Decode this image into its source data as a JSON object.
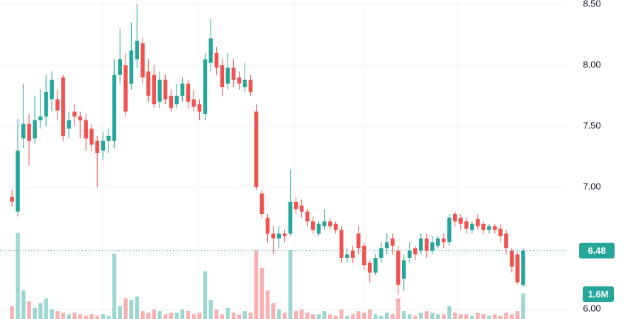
{
  "chart_data": {
    "type": "candlestick",
    "colors": {
      "up": "#26a69a",
      "down": "#ef5350"
    },
    "ylim": [
      5.92,
      8.535
    ],
    "yticks": [
      {
        "value": 6,
        "label": "6.00"
      },
      {
        "value": 7,
        "label": "7.00"
      },
      {
        "value": 7.5,
        "label": "7.50"
      },
      {
        "value": 8,
        "label": "8.00"
      },
      {
        "value": 8.5,
        "label": "8.50"
      }
    ],
    "y2lim": [
      0,
      20000000
    ],
    "grid": true,
    "open": [
      6.92,
      6.8,
      7.4,
      7.52,
      7.4,
      7.55,
      7.58,
      7.72,
      7.72,
      7.9,
      7.48,
      7.62,
      7.58,
      7.55,
      7.48,
      7.38,
      7.3,
      7.38,
      7.38,
      7.92,
      8.0,
      7.85,
      8.05,
      8.18,
      7.95,
      7.92,
      7.7,
      7.88,
      7.75,
      7.68,
      7.75,
      7.85,
      7.72,
      7.68,
      7.6,
      8.02,
      8.1,
      8.0,
      7.85,
      7.98,
      7.9,
      7.82,
      7.88,
      7.62,
      6.95,
      6.75,
      6.62,
      6.58,
      6.62,
      6.62,
      6.88,
      6.85,
      6.8,
      6.72,
      6.62,
      6.68,
      6.72,
      6.7,
      6.65,
      6.42,
      6.48,
      6.62,
      6.52,
      6.38,
      6.3,
      6.42,
      6.5,
      6.58,
      6.48,
      6.25,
      6.42,
      6.5,
      6.48,
      6.58,
      6.48,
      6.52,
      6.58,
      6.55,
      6.78,
      6.75,
      6.72,
      6.65,
      6.74,
      6.7,
      6.65,
      6.68,
      6.66,
      6.62,
      6.48,
      6.45,
      6.2
    ],
    "high": [
      6.98,
      7.56,
      7.85,
      7.6,
      7.75,
      7.8,
      7.92,
      7.95,
      7.8,
      7.92,
      7.62,
      7.68,
      7.62,
      7.6,
      7.52,
      7.42,
      7.45,
      7.48,
      8.05,
      8.3,
      8.1,
      8.35,
      8.5,
      8.22,
      8.05,
      8.0,
      7.95,
      7.92,
      7.8,
      7.85,
      7.9,
      7.88,
      7.8,
      7.72,
      8.1,
      8.38,
      8.15,
      8.05,
      8.1,
      8.05,
      7.95,
      8.02,
      7.92,
      7.68,
      6.98,
      6.78,
      6.68,
      6.68,
      6.65,
      7.15,
      6.92,
      6.9,
      6.82,
      6.76,
      6.72,
      6.82,
      6.75,
      6.72,
      6.68,
      6.5,
      6.52,
      6.68,
      6.55,
      6.4,
      6.45,
      6.55,
      6.62,
      6.62,
      6.52,
      6.45,
      6.55,
      6.52,
      6.62,
      6.62,
      6.6,
      6.6,
      6.62,
      6.78,
      6.8,
      6.78,
      6.75,
      6.72,
      6.78,
      6.72,
      6.7,
      6.7,
      6.7,
      6.65,
      6.5,
      6.48,
      6.5
    ],
    "low": [
      6.84,
      6.76,
      7.32,
      7.18,
      7.36,
      7.48,
      7.5,
      7.62,
      7.55,
      7.38,
      7.4,
      7.5,
      7.4,
      7.3,
      7.3,
      7.0,
      7.22,
      7.28,
      7.32,
      7.85,
      7.58,
      7.8,
      7.98,
      7.85,
      7.7,
      7.65,
      7.65,
      7.68,
      7.62,
      7.65,
      7.7,
      7.65,
      7.62,
      7.55,
      7.55,
      7.95,
      7.92,
      7.75,
      7.8,
      7.82,
      7.8,
      7.78,
      7.75,
      6.98,
      6.75,
      6.55,
      6.45,
      6.5,
      6.55,
      6.6,
      6.78,
      6.75,
      6.68,
      6.62,
      6.6,
      6.65,
      6.65,
      6.62,
      6.38,
      6.38,
      6.38,
      6.45,
      6.32,
      6.22,
      6.28,
      6.38,
      6.45,
      6.45,
      6.12,
      6.15,
      6.38,
      6.4,
      6.45,
      6.42,
      6.45,
      6.5,
      6.5,
      6.52,
      6.68,
      6.65,
      6.62,
      6.62,
      6.65,
      6.62,
      6.62,
      6.62,
      6.55,
      6.45,
      6.3,
      6.2,
      6.18
    ],
    "close": [
      6.88,
      7.3,
      7.52,
      7.38,
      7.55,
      7.58,
      7.78,
      7.88,
      7.63,
      7.42,
      7.55,
      7.58,
      7.55,
      7.4,
      7.35,
      7.28,
      7.38,
      7.42,
      7.92,
      8.05,
      7.62,
      8.12,
      8.2,
      7.9,
      7.75,
      7.68,
      7.88,
      7.72,
      7.65,
      7.75,
      7.85,
      7.7,
      7.66,
      7.62,
      8.05,
      8.22,
      7.98,
      7.82,
      7.98,
      7.88,
      7.85,
      7.88,
      7.78,
      7.0,
      6.78,
      6.62,
      6.58,
      6.62,
      6.6,
      6.88,
      6.82,
      6.8,
      6.72,
      6.65,
      6.7,
      6.72,
      6.68,
      6.65,
      6.42,
      6.45,
      6.42,
      6.5,
      6.36,
      6.3,
      6.42,
      6.5,
      6.55,
      6.52,
      6.2,
      6.4,
      6.48,
      6.45,
      6.58,
      6.48,
      6.55,
      6.58,
      6.55,
      6.75,
      6.72,
      6.7,
      6.66,
      6.7,
      6.68,
      6.65,
      6.68,
      6.65,
      6.6,
      6.5,
      6.35,
      6.22,
      6.48
    ],
    "volume": [
      800000,
      5400000,
      1800000,
      1100000,
      700000,
      1000000,
      1300000,
      600000,
      500000,
      400000,
      300000,
      400000,
      300000,
      200000,
      300000,
      200000,
      300000,
      200000,
      4100000,
      800000,
      1300000,
      1200000,
      1400000,
      500000,
      400000,
      600000,
      500000,
      300000,
      400000,
      400000,
      600000,
      500000,
      300000,
      400000,
      3000000,
      1200000,
      600000,
      300000,
      700000,
      400000,
      300000,
      500000,
      400000,
      4300000,
      3200000,
      1800000,
      1000000,
      600000,
      400000,
      4300000,
      500000,
      600000,
      400000,
      300000,
      300000,
      500000,
      300000,
      200000,
      600000,
      200000,
      300000,
      500000,
      400000,
      600000,
      300000,
      200000,
      400000,
      300000,
      1300000,
      500000,
      300000,
      200000,
      400000,
      500000,
      400000,
      300000,
      300000,
      800000,
      400000,
      300000,
      300000,
      200000,
      400000,
      300000,
      200000,
      300000,
      200000,
      400000,
      300000,
      500000,
      1600000
    ],
    "last_volume_label": "1.6M"
  }
}
